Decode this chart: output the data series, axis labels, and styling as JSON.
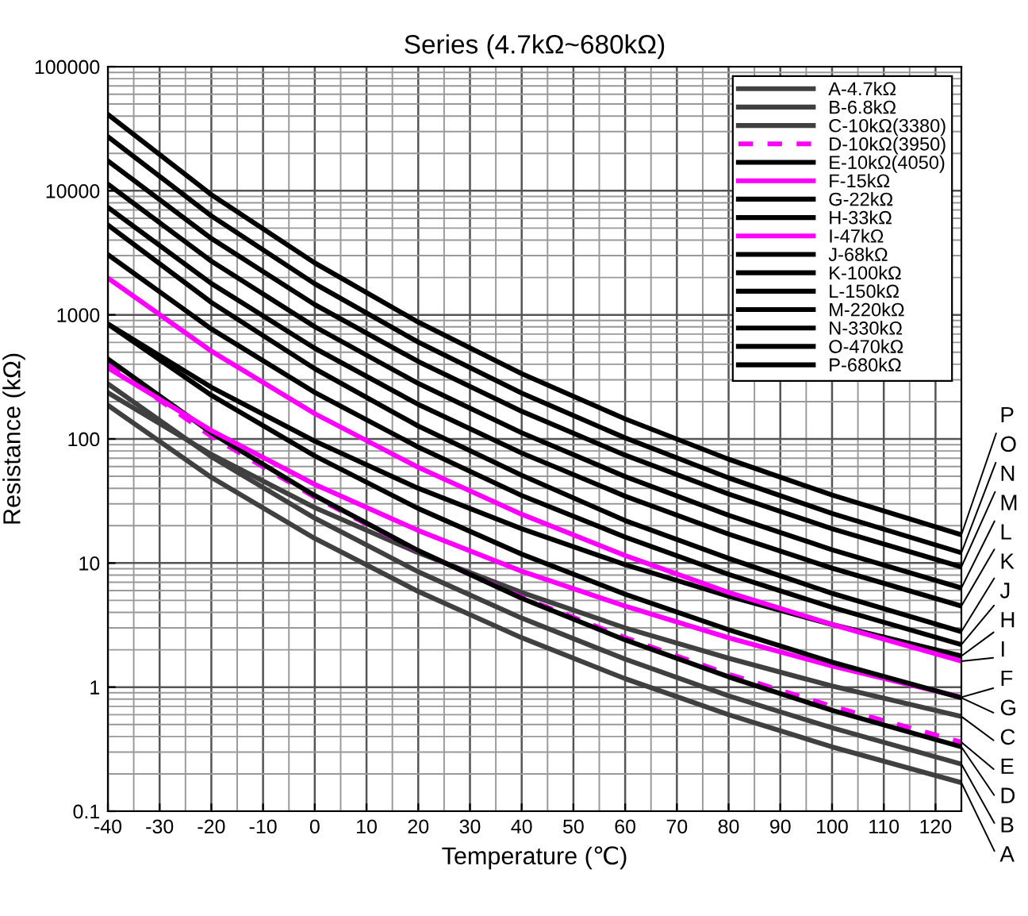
{
  "chart_data": {
    "type": "line",
    "title": "Series (4.7kΩ~680kΩ)",
    "xlabel": "Temperature (℃)",
    "ylabel": "Resistance (kΩ)",
    "x": [
      -40,
      -20,
      0,
      20,
      40,
      60,
      80,
      100,
      125
    ],
    "xlim": [
      -40,
      125
    ],
    "xticks": [
      -40,
      -30,
      -20,
      -10,
      0,
      10,
      20,
      30,
      40,
      50,
      60,
      70,
      80,
      90,
      100,
      110,
      120
    ],
    "ylim": [
      0.1,
      100000
    ],
    "yticks": [
      0.1,
      1,
      10,
      100,
      1000,
      10000,
      100000
    ],
    "log": "y",
    "grid": true,
    "legend": "top right",
    "series": [
      {
        "name": "A-4.7kΩ",
        "color": "#404040",
        "values": [
          187,
          49,
          15.8,
          5.9,
          2.5,
          1.17,
          0.6,
          0.33,
          0.17
        ]
      },
      {
        "name": "B-6.8kΩ",
        "color": "#404040",
        "values": [
          278,
          72,
          23,
          8.5,
          3.6,
          1.68,
          0.85,
          0.47,
          0.24
        ]
      },
      {
        "name": "C-10kΩ(3380)",
        "color": "#404040",
        "values": [
          236,
          75,
          28,
          12.1,
          5.8,
          3.0,
          1.71,
          1.02,
          0.58
        ]
      },
      {
        "name": "D-10kΩ(3950)",
        "color": "#ff00ff",
        "line_style": "dashed",
        "values": [
          402,
          105,
          34,
          12.5,
          5.3,
          2.5,
          1.27,
          0.7,
          0.36
        ]
      },
      {
        "name": "E-10kΩ(4050)",
        "color": "#000000",
        "values": [
          441,
          112,
          35,
          12.6,
          5.2,
          2.4,
          1.21,
          0.65,
          0.33
        ]
      },
      {
        "name": "F-15kΩ",
        "color": "#ff00ff",
        "values": [
          374,
          117,
          43,
          18.3,
          8.6,
          4.5,
          2.5,
          1.48,
          0.83
        ]
      },
      {
        "name": "G-22kΩ",
        "color": "#000000",
        "values": [
          844,
          225,
          73,
          27.5,
          11.8,
          5.6,
          2.9,
          1.59,
          0.82
        ]
      },
      {
        "name": "H-33kΩ",
        "color": "#000000",
        "values": [
          846,
          261,
          96,
          40,
          18.9,
          9.7,
          5.4,
          3.2,
          1.78
        ]
      },
      {
        "name": "I-47kΩ",
        "color": "#ff00ff",
        "values": [
          1980,
          510,
          160,
          59,
          24.7,
          11.5,
          5.8,
          3.2,
          1.62
        ]
      },
      {
        "name": "J-68kΩ",
        "color": "#000000",
        "values": [
          3060,
          770,
          237,
          86,
          35,
          16.2,
          8.1,
          4.4,
          2.2
        ]
      },
      {
        "name": "K-100kΩ",
        "color": "#000000",
        "values": [
          5300,
          1260,
          368,
          127,
          51,
          22,
          10.9,
          5.7,
          2.8
        ]
      },
      {
        "name": "L-150kΩ",
        "color": "#000000",
        "values": [
          7340,
          1790,
          538,
          190,
          77,
          34.6,
          17.1,
          9.1,
          4.5
        ]
      },
      {
        "name": "M-220kΩ",
        "color": "#000000",
        "values": [
          11300,
          2710,
          802,
          280,
          112,
          49.8,
          24.3,
          12.8,
          6.3
        ]
      },
      {
        "name": "N-330kΩ",
        "color": "#000000",
        "values": [
          17400,
          4130,
          1210,
          421,
          167,
          74,
          36,
          18.9,
          9.3
        ]
      },
      {
        "name": "O-470kΩ",
        "color": "#000000",
        "values": [
          27300,
          6270,
          1780,
          603,
          234,
          102,
          48.6,
          25.1,
          12.1
        ]
      },
      {
        "name": "P-680kΩ",
        "color": "#000000",
        "values": [
          41200,
          9300,
          2620,
          874,
          336,
          145,
          68.7,
          35.3,
          16.9
        ]
      }
    ],
    "annotations": [
      "P",
      "O",
      "N",
      "M",
      "L",
      "K",
      "J",
      "H",
      "I",
      "F",
      "G",
      "C",
      "E",
      "D",
      "B",
      "A"
    ]
  }
}
